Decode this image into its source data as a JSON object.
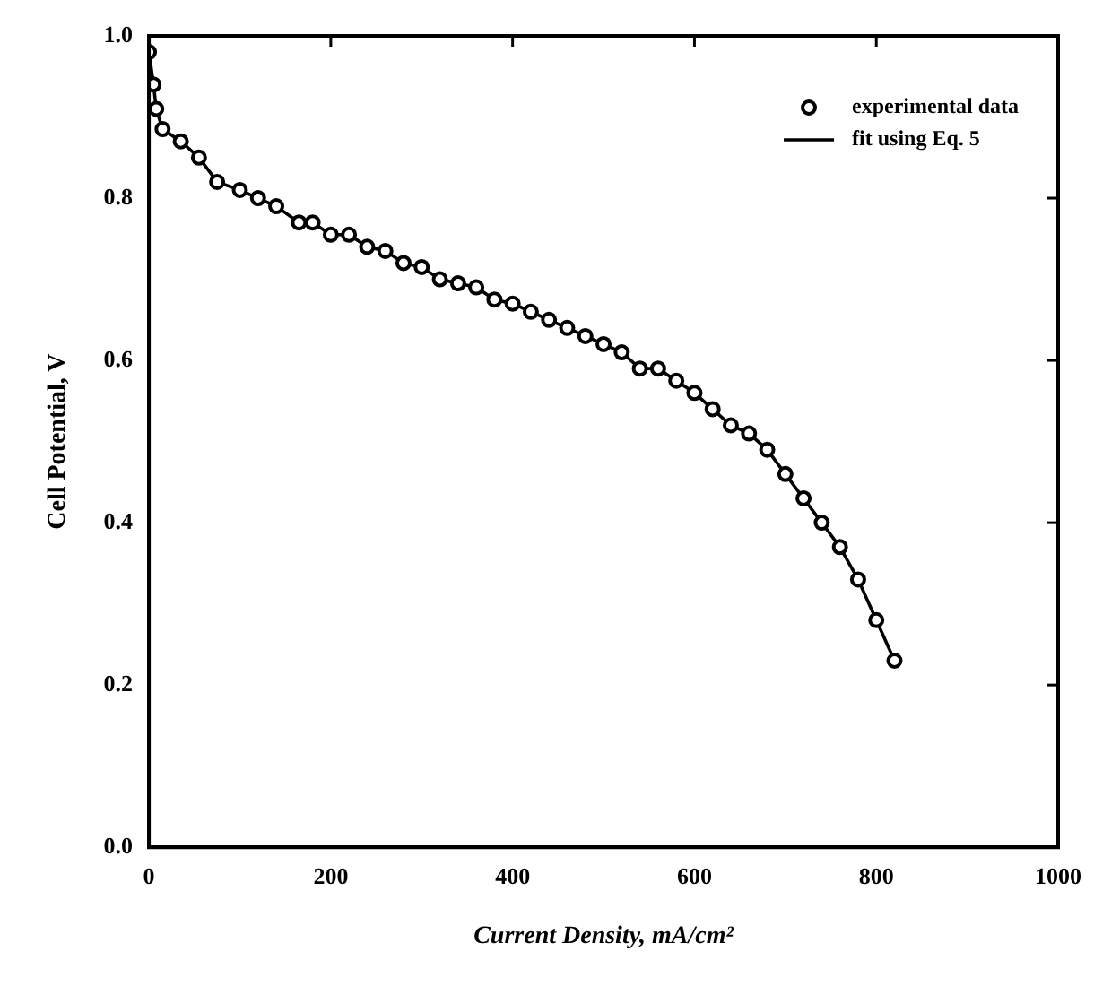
{
  "chart_data": {
    "type": "scatter",
    "xlabel": "Current Density, mA/cm²",
    "ylabel": "Cell Potential, V",
    "xlim": [
      0,
      1000
    ],
    "xticks": [
      0,
      200,
      400,
      600,
      800,
      1000
    ],
    "ylim": [
      0,
      1
    ],
    "yticks": [
      {
        "value": 0,
        "label": "0.0"
      },
      {
        "value": 0.2,
        "label": "0.2"
      },
      {
        "value": 0.4,
        "label": "0.4"
      },
      {
        "value": 0.6,
        "label": "0.6"
      },
      {
        "value": 0.8,
        "label": "0.8"
      },
      {
        "value": 1,
        "label": "1.0"
      }
    ],
    "grid": false,
    "legend": "top right",
    "series": [
      {
        "name": "experimental data",
        "type": "scatter",
        "marker": "circle",
        "color": "#000000",
        "x": [
          0,
          5,
          8,
          15,
          35,
          55,
          75,
          100,
          120,
          140,
          165,
          180,
          200,
          220,
          240,
          260,
          280,
          300,
          320,
          340,
          360,
          380,
          400,
          420,
          440,
          460,
          480,
          500,
          520,
          540,
          560,
          580,
          600,
          620,
          640,
          660,
          680,
          700,
          720,
          740,
          760,
          780,
          800,
          820
        ],
        "values": [
          0.98,
          0.94,
          0.91,
          0.885,
          0.87,
          0.85,
          0.82,
          0.81,
          0.8,
          0.79,
          0.77,
          0.77,
          0.755,
          0.755,
          0.74,
          0.735,
          0.72,
          0.715,
          0.7,
          0.695,
          0.69,
          0.675,
          0.67,
          0.66,
          0.65,
          0.64,
          0.63,
          0.62,
          0.61,
          0.59,
          0.59,
          0.575,
          0.56,
          0.54,
          0.52,
          0.51,
          0.49,
          0.46,
          0.43,
          0.4,
          0.37,
          0.33,
          0.28,
          0.23
        ]
      },
      {
        "name": "fit using Eq. 5",
        "type": "line",
        "marker": "none",
        "line_style": "solid",
        "color": "#000000",
        "x": [
          0,
          5,
          8,
          15,
          35,
          55,
          75,
          100,
          120,
          140,
          165,
          180,
          200,
          220,
          240,
          260,
          280,
          300,
          320,
          340,
          360,
          380,
          400,
          420,
          440,
          460,
          480,
          500,
          520,
          540,
          560,
          580,
          600,
          620,
          640,
          660,
          680,
          700,
          720,
          740,
          760,
          780,
          800,
          820
        ],
        "values": [
          0.98,
          0.94,
          0.91,
          0.885,
          0.87,
          0.85,
          0.82,
          0.81,
          0.8,
          0.79,
          0.77,
          0.77,
          0.755,
          0.755,
          0.74,
          0.735,
          0.72,
          0.715,
          0.7,
          0.695,
          0.69,
          0.675,
          0.67,
          0.66,
          0.65,
          0.64,
          0.63,
          0.62,
          0.61,
          0.59,
          0.59,
          0.575,
          0.56,
          0.54,
          0.52,
          0.51,
          0.49,
          0.46,
          0.43,
          0.4,
          0.37,
          0.33,
          0.28,
          0.23
        ]
      }
    ]
  }
}
